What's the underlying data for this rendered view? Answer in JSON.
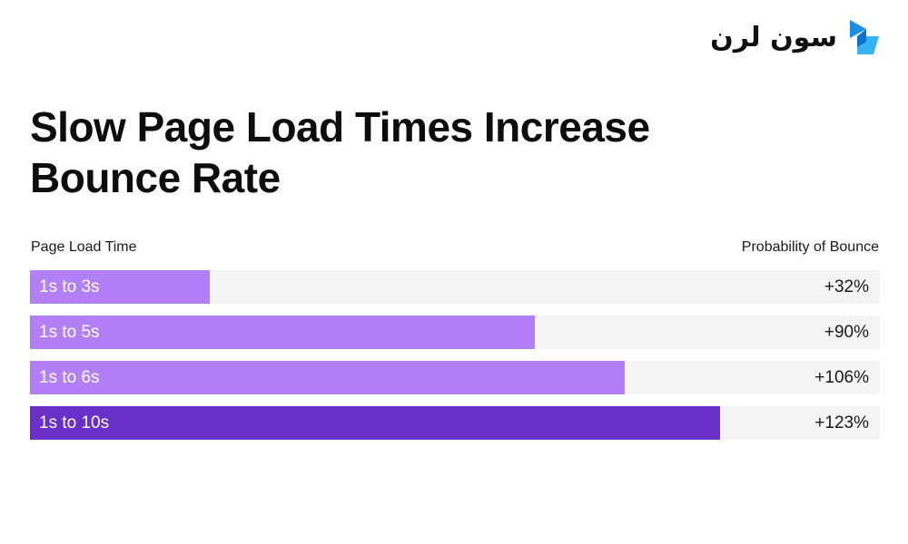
{
  "brand": {
    "logo_text": "سون لرن"
  },
  "chart_data": {
    "type": "bar",
    "title": "Slow Page Load Times Increase Bounce Rate",
    "xlabel": "Page Load Time",
    "ylabel": "Probability of Bounce",
    "max": 123,
    "categories": [
      "1s to 3s",
      "1s to 5s",
      "1s to 6s",
      "1s to 10s"
    ],
    "values": [
      32,
      90,
      106,
      123
    ],
    "value_labels": [
      "+32%",
      "+90%",
      "+106%",
      "+123%"
    ],
    "colors": [
      "#b37ff7",
      "#b37ff7",
      "#b37ff7",
      "#6a2fc6"
    ],
    "track_color": "#f4f4f4"
  }
}
